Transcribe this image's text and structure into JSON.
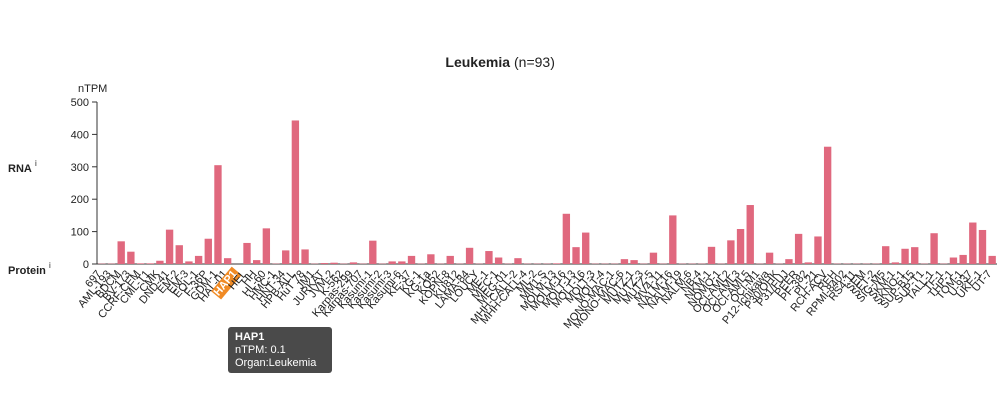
{
  "chart_data": {
    "type": "bar",
    "title": "Leukemia",
    "subtitle": "(n=93)",
    "y_label": "nTPM",
    "row_labels": [
      "RNA",
      "Protein"
    ],
    "info_marker": "i",
    "categories": [
      "697",
      "AML-193",
      "BDCM",
      "BV-173",
      "CCRF-CEM",
      "CML-T1",
      "CMK",
      "DND-41",
      "EM-2",
      "EM-3",
      "EOL-1",
      "F-36P",
      "GDM-1",
      "HAL-01",
      "HAP1",
      "HEL",
      "HH",
      "HL-60",
      "HMC-1",
      "HNT-34",
      "HPB-ALL",
      "HuT 78",
      "JM1",
      "JURKAT",
      "JVM-2",
      "K-562",
      "Karpas-299",
      "Karpas-707",
      "Kasumi-1",
      "Kasumi-2",
      "Kasumi-3",
      "Kasumi-6",
      "KE-37",
      "KG-1",
      "KG-1a",
      "KO52",
      "KOPN-8",
      "KU812",
      "LAMA-84",
      "LOUCY",
      "ME-1",
      "MEC-1",
      "MEG-01",
      "MHH-CALL-2",
      "MHH-CALL-4",
      "ML-2",
      "MM1.S",
      "MOLM-13",
      "MOLM-16",
      "MOLT-13",
      "MOLT-16",
      "MOLT-3",
      "MOLT-4",
      "MONO-MAC-1",
      "MONO-MAC-6",
      "MUTZ-1",
      "MUTZ-3",
      "MUTZ-5",
      "MV4-11",
      "NALM-16",
      "NALM-19",
      "NALM-6",
      "NB-4",
      "NKM-1",
      "NOMO-1",
      "OCI-AML2",
      "OCI-AML3",
      "OCI-AML5",
      "OCI-M1",
      "P12-Ichikawa",
      "P30/OHK",
      "P31/FUJ",
      "PEER",
      "PF-382",
      "PL-21",
      "RCH-ACV",
      "REH",
      "RPMI-8402",
      "RS4;11",
      "SEM",
      "SET-2",
      "SIG-M5",
      "SKM-1",
      "SKNO-1",
      "SUP-B15",
      "SUP-T1",
      "TALL-1",
      "TF-1",
      "THP-1",
      "TOM-1",
      "U-937",
      "UKE-1",
      "UT-7"
    ],
    "values": [
      1,
      1,
      70,
      38,
      2,
      2,
      10,
      106,
      58,
      8,
      25,
      78,
      305,
      18,
      0.1,
      65,
      12,
      110,
      1,
      42,
      443,
      45,
      1,
      3,
      4,
      1,
      5,
      1,
      72,
      1,
      8,
      8,
      25,
      1,
      30,
      1,
      25,
      1,
      50,
      1,
      40,
      20,
      1,
      18,
      1,
      1,
      1,
      2,
      155,
      52,
      97,
      1,
      1,
      1,
      15,
      12,
      1,
      35,
      1,
      150,
      1,
      1,
      1,
      53,
      1,
      73,
      108,
      182,
      1,
      35,
      1,
      15,
      93,
      5,
      85,
      362,
      1,
      1,
      1,
      1,
      1,
      55,
      5,
      47,
      52,
      1,
      95,
      1,
      20,
      28,
      128,
      105,
      25
    ],
    "color": "#e0687e",
    "ylim": [
      0,
      500
    ],
    "yticks": [
      0,
      100,
      200,
      300,
      400,
      500
    ],
    "tooltip": {
      "title": "HAP1",
      "lines": [
        "nTPM: 0.1",
        "Organ:Leukemia"
      ]
    }
  }
}
